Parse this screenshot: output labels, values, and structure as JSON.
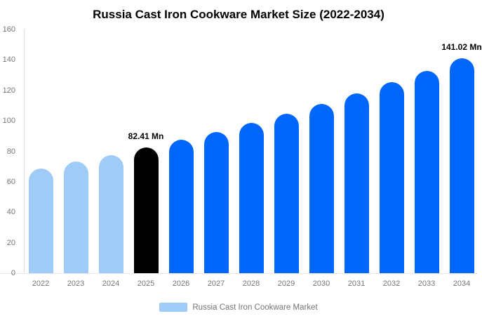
{
  "title": "Russia Cast Iron Cookware Market Size (2022-2034)",
  "legend": {
    "label": "Russia Cast Iron Cookware Market",
    "swatch_color": "#9FCBF9"
  },
  "colors": {
    "historical_bar": "#9FCBF9",
    "base_year_bar": "#000000",
    "forecast_bar": "#0166FC",
    "axis_line": "#dddddd",
    "baseline": "#e6e6e6",
    "tick_text": "#757575",
    "title_text": "#000000",
    "annotation_text": "#000000"
  },
  "chart_data": {
    "type": "bar",
    "title": "Russia Cast Iron Cookware Market Size (2022-2034)",
    "categories": [
      "2022",
      "2023",
      "2024",
      "2025",
      "2026",
      "2027",
      "2028",
      "2029",
      "2030",
      "2031",
      "2032",
      "2033",
      "2034"
    ],
    "values": [
      68.8,
      73.1,
      77.6,
      82.41,
      87.5,
      92.9,
      98.6,
      104.7,
      111.1,
      118.0,
      125.2,
      132.9,
      141.02
    ],
    "unit": "Mn",
    "series_name": "Russia Cast Iron Cookware Market",
    "xlabel": "",
    "ylabel": "",
    "ylim": [
      0,
      160
    ],
    "yticks": [
      0,
      20,
      40,
      60,
      80,
      100,
      120,
      140,
      160
    ],
    "grid": false,
    "legend_position": "bottom",
    "bar_colors": [
      "#9FCBF9",
      "#9FCBF9",
      "#9FCBF9",
      "#000000",
      "#0166FC",
      "#0166FC",
      "#0166FC",
      "#0166FC",
      "#0166FC",
      "#0166FC",
      "#0166FC",
      "#0166FC",
      "#0166FC"
    ],
    "annotations": [
      {
        "category": "2025",
        "text": "82.41 Mn"
      },
      {
        "category": "2034",
        "text": "141.02 Mn"
      }
    ]
  }
}
